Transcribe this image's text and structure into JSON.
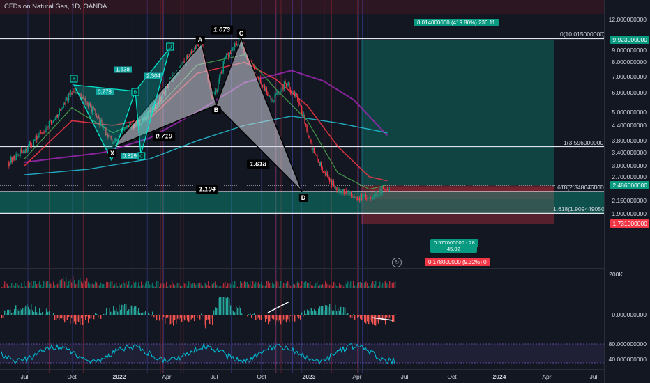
{
  "header": {
    "title": "CFDs on Natural Gas, 1D, OANDA"
  },
  "price_axis": {
    "labels": [
      "12.000000000",
      "9.000000000",
      "8.000000000",
      "7.000000000",
      "6.000000000",
      "5.000000000",
      "4.400000000",
      "3.800000000",
      "3.400000000",
      "3.000000000",
      "2.700000000",
      "2.150000000",
      "1.900000000"
    ],
    "badges": [
      {
        "text": "9.923000000",
        "color": "#089981"
      },
      {
        "text": "2.486000000",
        "color": "#089981"
      },
      {
        "text": "1.731000000",
        "color": "#f23645"
      }
    ]
  },
  "volume_axis": {
    "labels": [
      "200K"
    ]
  },
  "macd_axis": {
    "labels": [
      "0.000000000"
    ]
  },
  "rsi_axis": {
    "labels": [
      "80.000000000",
      "40.000000000"
    ]
  },
  "time_axis": {
    "labels": [
      {
        "text": "Jul",
        "bold": false
      },
      {
        "text": "Oct",
        "bold": false
      },
      {
        "text": "2022",
        "bold": true
      },
      {
        "text": "Apr",
        "bold": false
      },
      {
        "text": "Jul",
        "bold": false
      },
      {
        "text": "Oct",
        "bold": false
      },
      {
        "text": "2023",
        "bold": true
      },
      {
        "text": "Apr",
        "bold": false
      },
      {
        "text": "Jul",
        "bold": false
      },
      {
        "text": "Oct",
        "bold": false
      },
      {
        "text": "2024",
        "bold": true
      },
      {
        "text": "Apr",
        "bold": false
      },
      {
        "text": "Jul",
        "bold": false
      }
    ]
  },
  "fib_levels": [
    {
      "text": "0(10.015000000)"
    },
    {
      "text": "1(3.596000000)"
    },
    {
      "text": "1.618(2.348646000)"
    },
    {
      "text": "1.618(1.909449050)"
    }
  ],
  "harmonic": {
    "points": [
      "X",
      "A",
      "B",
      "C",
      "D"
    ],
    "ratios": [
      "1.073",
      "0.719",
      "1.618",
      "1.194"
    ]
  },
  "small_pattern": {
    "points": [
      "X",
      "A",
      "B",
      "C",
      "D"
    ],
    "ratios": [
      "0.778",
      "1.638",
      "2.304",
      "0.829"
    ]
  },
  "position": {
    "target": "8.014000000 (419.80%) 230.11",
    "center_top": "0.577000000 - 28",
    "center_bottom": "45.02",
    "stop": "0.178000000 (9.32%) 0"
  },
  "colors": {
    "background": "#131722",
    "up": "#089981",
    "down": "#f23645",
    "pattern": "#d1d4dc",
    "teal": "#00e5cc"
  },
  "chart_data": {
    "type": "candlestick",
    "title": "CFDs on Natural Gas, 1D, OANDA",
    "y_scale": "log",
    "ylim": [
      1.7,
      12.0
    ],
    "x_range": [
      "2021-06",
      "2024-08"
    ],
    "price_path": {
      "dates": [
        "2021-06-01",
        "2021-07-15",
        "2021-09-01",
        "2021-10-05",
        "2021-11-10",
        "2021-12-20",
        "2022-01-15",
        "2022-02-15",
        "2022-03-20",
        "2022-04-20",
        "2022-05-20",
        "2022-06-10",
        "2022-07-01",
        "2022-07-25",
        "2022-08-22",
        "2022-09-25",
        "2022-10-25",
        "2022-11-20",
        "2022-12-15",
        "2023-01-15",
        "2023-02-20",
        "2023-03-20",
        "2023-04-20",
        "2023-05-15",
        "2023-06-10"
      ],
      "close": [
        3.1,
        3.7,
        4.8,
        6.2,
        5.1,
        3.7,
        4.3,
        4.6,
        5.6,
        7.2,
        8.8,
        9.5,
        5.5,
        8.2,
        9.8,
        7.0,
        5.6,
        6.6,
        5.6,
        3.3,
        2.5,
        2.3,
        2.2,
        2.3,
        2.48
      ]
    },
    "harmonic_points": [
      {
        "label": "X",
        "value": 3.56
      },
      {
        "label": "A",
        "value": 9.55
      },
      {
        "label": "B",
        "value": 5.33
      },
      {
        "label": "C",
        "value": 10.01
      },
      {
        "label": "D",
        "value": 2.35
      }
    ],
    "fib_levels": [
      {
        "ratio": 0,
        "value": 10.015
      },
      {
        "ratio": 1,
        "value": 3.596
      },
      {
        "ratio": 1.618,
        "value": 2.348646
      },
      {
        "ratio": 1.618,
        "value": 1.90944905
      }
    ],
    "position": {
      "entry": 2.486,
      "target": 9.923,
      "stop": 1.731
    }
  }
}
